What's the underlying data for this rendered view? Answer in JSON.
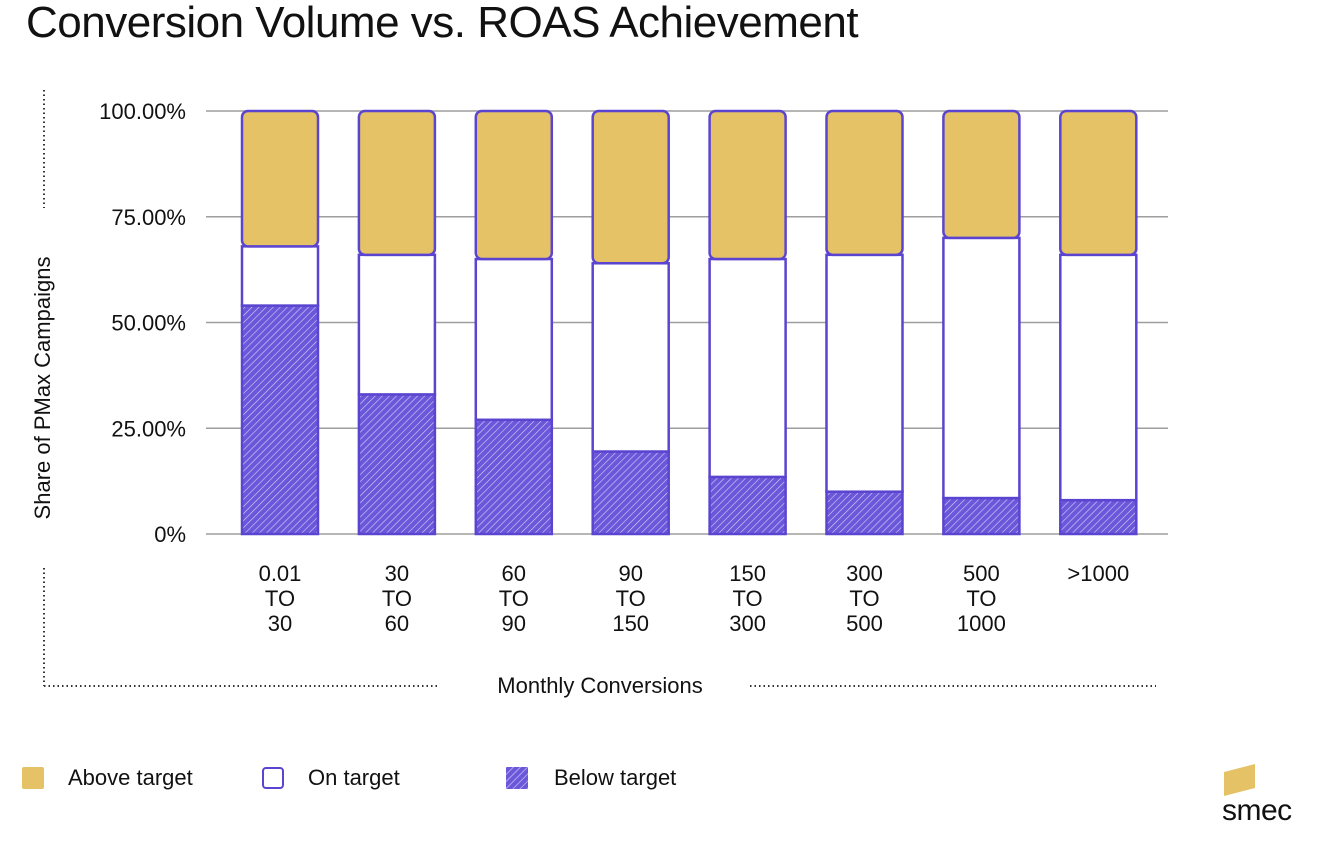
{
  "title": "Conversion Volume vs. ROAS Achievement",
  "brand": "smec",
  "colors": {
    "above": "#E5C265",
    "on_fill": "#FFFFFF",
    "below": "#5B45D0",
    "outline": "#5B45D0",
    "grid": "#9E9E9E",
    "dotted": "#333333"
  },
  "legend": [
    {
      "key": "above",
      "label": "Above target"
    },
    {
      "key": "on",
      "label": "On target"
    },
    {
      "key": "below",
      "label": "Below target"
    }
  ],
  "chart_data": {
    "type": "bar",
    "stacked": true,
    "title": "Conversion Volume vs. ROAS Achievement",
    "xlabel": "Monthly Conversions",
    "ylabel": "Share of PMax Campaigns",
    "ylim": [
      0,
      100
    ],
    "yticks": [
      0,
      25,
      50,
      75,
      100
    ],
    "ytick_labels": [
      "0%",
      "25.00%",
      "50.00%",
      "75.00%",
      "100.00%"
    ],
    "grid": true,
    "legend_position": "bottom-left",
    "categories": [
      [
        "0.01",
        "TO",
        "30"
      ],
      [
        "30",
        "TO",
        "60"
      ],
      [
        "60",
        "TO",
        "90"
      ],
      [
        "90",
        "TO",
        "150"
      ],
      [
        "150",
        "TO",
        "300"
      ],
      [
        "300",
        "TO",
        "500"
      ],
      [
        "500",
        "TO",
        "1000"
      ],
      [
        ">1000"
      ]
    ],
    "series": [
      {
        "name": "Below target",
        "key": "below",
        "values": [
          54,
          33,
          27,
          19.5,
          13.5,
          10,
          8.5,
          8
        ]
      },
      {
        "name": "On target",
        "key": "on",
        "values": [
          14,
          33,
          38,
          44.5,
          51.5,
          56,
          61.5,
          58
        ]
      },
      {
        "name": "Above target",
        "key": "above",
        "values": [
          32,
          34,
          35,
          36,
          35,
          34,
          30,
          34
        ]
      }
    ]
  }
}
